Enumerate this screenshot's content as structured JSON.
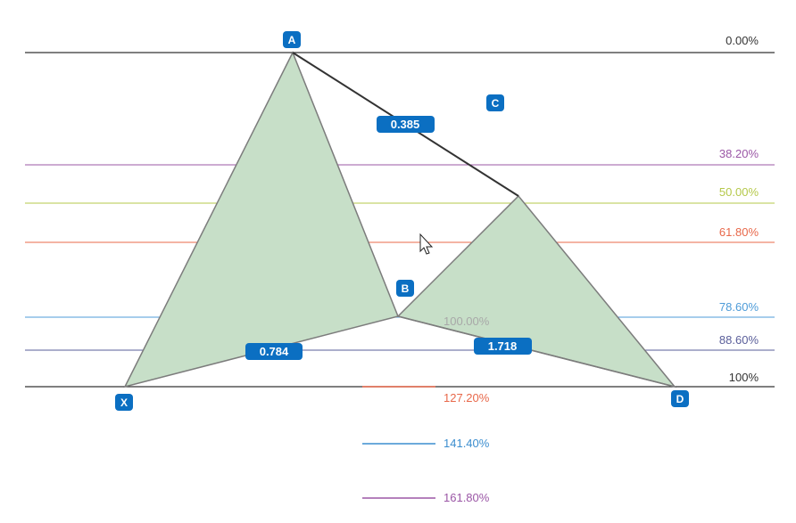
{
  "levels": [
    {
      "id": "l0",
      "label": "0.00%",
      "color": "#333333"
    },
    {
      "id": "l382",
      "label": "38.20%",
      "color": "#9b57a6"
    },
    {
      "id": "l500",
      "label": "50.00%",
      "color": "#b5c84a"
    },
    {
      "id": "l618",
      "label": "61.80%",
      "color": "#e8684a"
    },
    {
      "id": "l786",
      "label": "78.60%",
      "color": "#4d9bd8"
    },
    {
      "id": "l886",
      "label": "88.60%",
      "color": "#5a5e9a"
    },
    {
      "id": "l100",
      "label": "100%",
      "color": "#333333"
    }
  ],
  "points": {
    "X": "X",
    "A": "A",
    "B": "B",
    "C": "C",
    "D": "D"
  },
  "ratios": {
    "xab": "0.784",
    "abc": "0.385",
    "bcd": "1.718"
  },
  "extensions": [
    {
      "label": "100.00%",
      "color": "#a8a8a8"
    },
    {
      "label": "127.20%",
      "color": "#e8684a"
    },
    {
      "label": "141.40%",
      "color": "#3c8ecf"
    },
    {
      "label": "161.80%",
      "color": "#9b57a6"
    }
  ],
  "colors": {
    "fill": "#c7dfc8",
    "stroke": "#7c7c7c",
    "badge": "#0b6fc2"
  }
}
